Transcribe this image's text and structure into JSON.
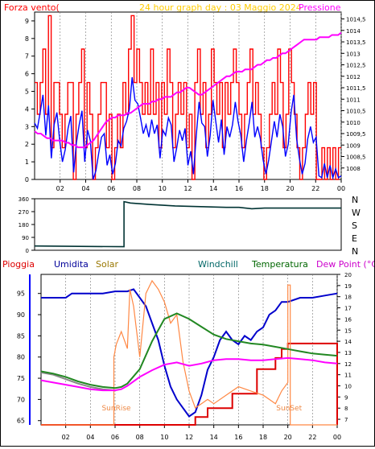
{
  "chart_data": [
    {
      "type": "line",
      "title": "24 hour graph day : 03 Maggio 2024",
      "left_label": "Forza vento(",
      "right_label": "Pressione",
      "x_ticks": [
        "02",
        "04",
        "06",
        "08",
        "10",
        "12",
        "14",
        "16",
        "18",
        "20",
        "22",
        "00"
      ],
      "left_ticks": [
        "0",
        "1",
        "2",
        "3",
        "4",
        "5",
        "6",
        "7",
        "8",
        "9"
      ],
      "right_ticks": [
        "1008",
        "1008,5",
        "1009",
        "1009,5",
        "1010",
        "1010,5",
        "1011",
        "1011,5",
        "1012",
        "1012,5",
        "1013",
        "1013,5",
        "1014",
        "1014,5"
      ],
      "ylim_left": [
        0,
        9.5
      ],
      "ylim_right": [
        1007.5,
        1014.8
      ],
      "series": [
        {
          "color": "#ff0000",
          "values": [
            5.5,
            3.7,
            5.5,
            7.4,
            3.7,
            9.3,
            1.8,
            5.5,
            5.5,
            3.7,
            1.8,
            3.7,
            5.5,
            5.5,
            0,
            3.7,
            5.5,
            7.4,
            1.8,
            5.5,
            3.7,
            0,
            1.8,
            3.7,
            5.5,
            5.5,
            1.8,
            3.7,
            0,
            1.8,
            3.7,
            1.8,
            5.5,
            3.7,
            7.4,
            9.3,
            5.5,
            7.4,
            5.5,
            3.7,
            5.5,
            3.7,
            7.4,
            3.7,
            5.5,
            1.8,
            5.5,
            3.7,
            7.4,
            5.5,
            1.8,
            3.7,
            5.5,
            3.7,
            5.5,
            1.8,
            3.7,
            0,
            5.5,
            7.4,
            3.7,
            5.5,
            1.8,
            3.7,
            7.4,
            5.5,
            3.7,
            5.5,
            1.8,
            5.5,
            3.7,
            5.5,
            7.4,
            5.5,
            3.7,
            1.8,
            3.7,
            5.5,
            7.4,
            3.7,
            5.5,
            3.7,
            1.8,
            0,
            1.8,
            3.7,
            5.5,
            3.7,
            7.4,
            5.5,
            1.8,
            3.7,
            7.4,
            5.5,
            3.7,
            1.8,
            0,
            1.8,
            3.7,
            5.5,
            3.7,
            5.5,
            0,
            0,
            1.8,
            0,
            1.8,
            0,
            1.8,
            0,
            1.8
          ]
        },
        {
          "color": "#0000ff",
          "values": [
            3.2,
            2.9,
            3.8,
            4.8,
            2.5,
            4.2,
            1.2,
            3.1,
            3.8,
            2.2,
            1.0,
            1.7,
            2.9,
            3.6,
            0.4,
            2.1,
            3.1,
            3.9,
            1.0,
            2.8,
            2.2,
            0,
            0.5,
            1.5,
            2.4,
            2.6,
            0.8,
            1.4,
            0.3,
            0.9,
            2.2,
            1.9,
            2.9,
            3.3,
            4.0,
            5.8,
            4.5,
            4.3,
            3.5,
            2.6,
            3.1,
            2.4,
            3.4,
            2.6,
            3.1,
            1.2,
            2.8,
            2.5,
            3.5,
            3.1,
            1.0,
            1.8,
            2.8,
            2.2,
            2.9,
            0.8,
            1.6,
            0.3,
            2.5,
            4.4,
            3.2,
            3.0,
            1.3,
            2.5,
            4.5,
            3.3,
            2.1,
            3.4,
            1.4,
            3.0,
            2.4,
            3.1,
            4.4,
            3.3,
            2.5,
            1.0,
            2.2,
            3.2,
            4.4,
            2.4,
            3.0,
            2.3,
            1.1,
            0.3,
            1.1,
            2.2,
            3.3,
            2.4,
            3.7,
            3.0,
            1.3,
            2.0,
            3.8,
            4.8,
            2.3,
            1.2,
            0.3,
            0.9,
            2.3,
            3.0,
            2.1,
            2.4,
            0.2,
            0.1,
            0.9,
            0.1,
            0.8,
            0.1,
            0.6,
            0.1,
            0.2
          ]
        },
        {
          "color": "#ff00ff",
          "axis": "right",
          "values": [
            1009.6,
            1009.5,
            1009.5,
            1009.4,
            1009.3,
            1009.3,
            1009.2,
            1009.2,
            1009.2,
            1009.2,
            1009.1,
            1009.1,
            1009.0,
            1009.0,
            1008.9,
            1008.9,
            1008.9,
            1009.0,
            1009.1,
            1009.2,
            1009.4,
            1009.6,
            1009.8,
            1010.0,
            1010.1,
            1010.2,
            1010.2,
            1010.3,
            1010.3,
            1010.3,
            1010.4,
            1010.4,
            1010.5,
            1010.6,
            1010.7,
            1010.8,
            1010.8,
            1010.8,
            1010.9,
            1010.9,
            1011.0,
            1011.0,
            1011.1,
            1011.1,
            1011.1,
            1011.2,
            1011.3,
            1011.3,
            1011.4,
            1011.5,
            1011.5,
            1011.4,
            1011.3,
            1011.2,
            1011.2,
            1011.3,
            1011.4,
            1011.5,
            1011.6,
            1011.7,
            1011.8,
            1011.9,
            1012.0,
            1012.0,
            1012.1,
            1012.2,
            1012.2,
            1012.2,
            1012.3,
            1012.3,
            1012.3,
            1012.4,
            1012.5,
            1012.5,
            1012.6,
            1012.7,
            1012.7,
            1012.8,
            1012.8,
            1012.9,
            1013.0,
            1013.0,
            1013.1,
            1013.2,
            1013.3,
            1013.4,
            1013.5,
            1013.6,
            1013.6,
            1013.6,
            1013.6,
            1013.6,
            1013.7,
            1013.7,
            1013.7,
            1013.7,
            1013.8,
            1013.8,
            1013.8,
            1013.9
          ]
        }
      ]
    },
    {
      "type": "line",
      "title": "",
      "left_ticks": [
        "0",
        "90",
        "180",
        "270",
        "360"
      ],
      "right_ticks": [
        "N",
        "W",
        "S",
        "E",
        "N"
      ],
      "ylim": [
        0,
        360
      ],
      "series": [
        {
          "color": "#003333",
          "x_hours": [
            0,
            7.0,
            7.0,
            7.5,
            9,
            11,
            13,
            15,
            16,
            17,
            18,
            24
          ],
          "values": [
            30,
            25,
            340,
            330,
            320,
            310,
            305,
            300,
            300,
            290,
            295,
            295
          ]
        }
      ]
    },
    {
      "type": "line",
      "title": "",
      "legend": [
        "Pioggia",
        "Umidita",
        "Solar",
        "Windchill",
        "Temperatura",
        "Dew Point (°C)"
      ],
      "left_ticks": [
        "65",
        "70",
        "75",
        "80",
        "85",
        "90",
        "95"
      ],
      "right_ticks": [
        "7",
        "8",
        "9",
        "10",
        "11",
        "12",
        "13",
        "14",
        "15",
        "16",
        "17",
        "18",
        "19",
        "20"
      ],
      "annotations": [
        "SunRise",
        "SunSet"
      ],
      "ylim_left": [
        64,
        99.5
      ],
      "ylim_right": [
        6.5,
        20
      ],
      "series": [
        {
          "name": "Pioggia",
          "color": "#dd0000",
          "axis": "right",
          "x_hours": [
            0,
            12.5,
            12.5,
            13.5,
            13.5,
            15.5,
            15.5,
            17.5,
            17.5,
            19.0,
            19.0,
            19.5,
            19.5,
            20.0,
            20.0,
            24.0,
            24.0
          ],
          "values": [
            6.5,
            6.5,
            7.2,
            7.2,
            8.0,
            8.0,
            9.3,
            9.3,
            11.5,
            11.5,
            12.5,
            12.5,
            13.3,
            13.3,
            13.8,
            13.8,
            6.5
          ]
        },
        {
          "name": "Umidita",
          "color": "#0000cc",
          "axis": "left",
          "x_hours": [
            0,
            2,
            2.5,
            4,
            5,
            6,
            7,
            7.5,
            8,
            8.5,
            9,
            9.5,
            10,
            10.5,
            11,
            11.5,
            12,
            12.5,
            13,
            13.5,
            14,
            14.5,
            15,
            15.5,
            16,
            16.5,
            17,
            17.5,
            18,
            18.5,
            19,
            19.5,
            20,
            21,
            22,
            23,
            24
          ],
          "values": [
            94,
            94,
            95,
            95,
            95,
            95.5,
            95.5,
            96,
            94,
            92,
            88,
            84,
            78,
            73,
            70,
            68,
            66,
            67,
            71,
            77,
            80,
            84,
            86,
            84,
            83,
            85,
            84,
            86,
            87,
            90,
            91,
            93,
            93,
            94,
            94,
            94.5,
            95
          ]
        },
        {
          "name": "Solar",
          "color": "#ff8844",
          "axis": "left",
          "x_hours": [
            0,
            5.9,
            5.9,
            6.1,
            6.5,
            7.0,
            7.2,
            7.5,
            8,
            8.5,
            9,
            9.5,
            10,
            10.5,
            11,
            11.5,
            12,
            12.5,
            13,
            13.5,
            14,
            15,
            16,
            17,
            18,
            18.5,
            19,
            19.5,
            20.0,
            20.0,
            20.2,
            20.2,
            24
          ],
          "values": [
            64,
            64,
            80,
            83,
            86,
            82,
            96,
            92,
            80,
            95,
            98,
            96,
            93,
            88,
            90,
            79,
            72,
            68,
            69,
            70,
            69,
            71,
            73,
            72,
            71,
            70,
            69,
            72,
            74,
            97,
            97,
            64,
            64
          ]
        },
        {
          "name": "Windchill",
          "color": "#888888",
          "axis": "right",
          "x_hours": [
            0,
            1,
            2,
            3,
            4,
            5,
            6
          ],
          "values": [
            11.2,
            11.0,
            10.6,
            10.2,
            9.9,
            9.7,
            9.6
          ]
        },
        {
          "name": "Temperatura",
          "color": "#228822",
          "axis": "right",
          "x_hours": [
            0,
            1,
            2,
            3,
            4,
            5,
            6,
            6.5,
            7,
            8,
            9,
            10,
            11,
            12,
            13,
            14,
            15,
            16,
            17,
            18,
            19,
            20,
            21,
            22,
            23,
            24
          ],
          "values": [
            11.3,
            11.1,
            10.8,
            10.4,
            10.1,
            9.9,
            9.8,
            9.9,
            10.2,
            11.5,
            14.0,
            16.0,
            16.5,
            16.0,
            15.3,
            14.6,
            14.2,
            14.0,
            13.8,
            13.7,
            13.5,
            13.3,
            13.1,
            12.9,
            12.8,
            12.7
          ]
        },
        {
          "name": "Dew Point (°C)",
          "color": "#ff00ff",
          "axis": "right",
          "x_hours": [
            0,
            1,
            2,
            3,
            4,
            5,
            6,
            6.5,
            7,
            8,
            9,
            10,
            11,
            12,
            13,
            14,
            15,
            16,
            17,
            18,
            19,
            20,
            21,
            22,
            23,
            24
          ],
          "values": [
            10.5,
            10.3,
            10.1,
            9.9,
            9.7,
            9.6,
            9.6,
            9.7,
            10.0,
            10.8,
            11.4,
            11.9,
            12.1,
            11.8,
            12.0,
            12.3,
            12.4,
            12.4,
            12.3,
            12.3,
            12.4,
            12.5,
            12.4,
            12.3,
            12.1,
            12.0
          ]
        }
      ]
    }
  ]
}
